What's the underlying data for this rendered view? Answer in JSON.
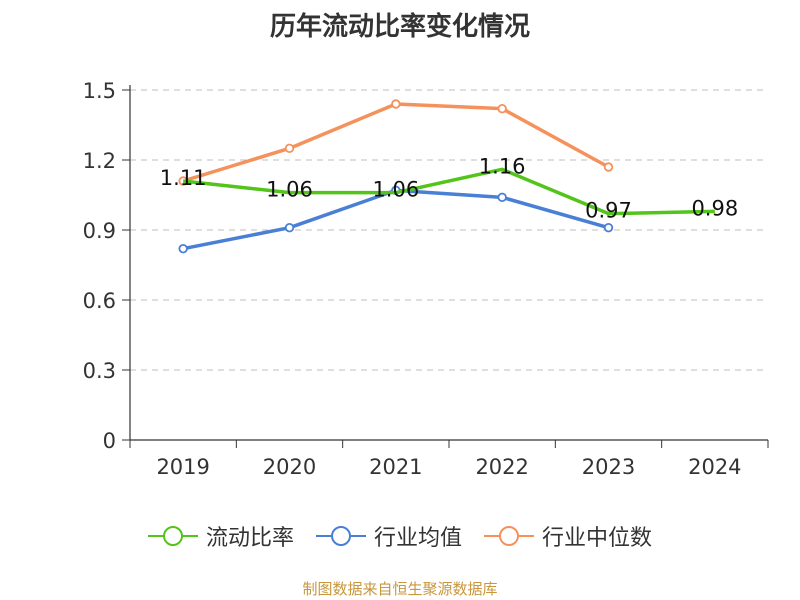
{
  "chart_data": {
    "type": "line",
    "title": "历年流动比率变化情况",
    "categories": [
      "2019",
      "2020",
      "2021",
      "2022",
      "2023",
      "2024"
    ],
    "ylim": [
      0,
      1.5
    ],
    "yticks": [
      "0",
      "0.3",
      "0.6",
      "0.9",
      "1.2",
      "1.5"
    ],
    "grid": true,
    "legend_position": "bottom",
    "series": [
      {
        "name": "流动比率",
        "color": "#52c41a",
        "values": [
          1.11,
          1.06,
          1.06,
          1.16,
          0.97,
          0.98
        ],
        "labels": [
          "1.11",
          "1.06",
          "1.06",
          "1.16",
          "0.97",
          "0.98"
        ]
      },
      {
        "name": "行业均值",
        "color": "#4a7fd6",
        "values": [
          0.82,
          0.91,
          1.07,
          1.04,
          0.91,
          null
        ]
      },
      {
        "name": "行业中位数",
        "color": "#f5915a",
        "values": [
          1.11,
          1.25,
          1.44,
          1.42,
          1.17,
          null
        ]
      }
    ]
  },
  "footer": {
    "source": "制图数据来自恒生聚源数据库"
  }
}
